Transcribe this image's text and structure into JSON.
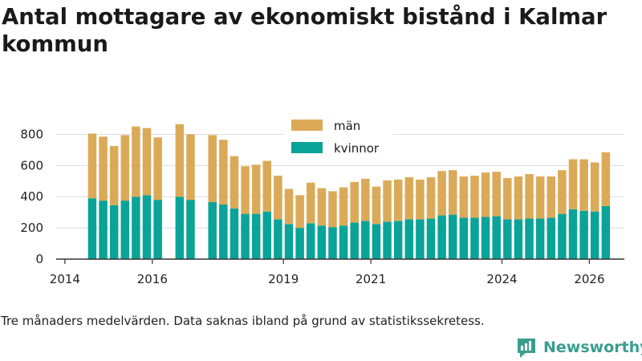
{
  "header": {
    "title": "Antal mottagare av ekonomiskt bistånd i Kalmar kommun"
  },
  "footer": {
    "note": "Tre månaders medelvärden. Data saknas ibland på grund av statistikssekretess.",
    "brand": "Newsworthy"
  },
  "colors": {
    "man": "#dbaa58",
    "kvinnor": "#0aa398",
    "brand": "#3a9e8f",
    "axis": "#333333",
    "grid": "#dddddd"
  },
  "chart_data": {
    "type": "bar",
    "stacked": true,
    "title": "Antal mottagare av ekonomiskt bistånd i Kalmar kommun",
    "xlabel": "",
    "ylabel": "",
    "ylim": [
      0,
      900
    ],
    "yticks": [
      0,
      200,
      400,
      600,
      800
    ],
    "xlim": [
      2013.8,
      2026.8
    ],
    "xticks": [
      2014,
      2016,
      2019,
      2021,
      2024,
      2026
    ],
    "grid": true,
    "legend_position": "top-center",
    "x": [
      2014.625,
      2014.875,
      2015.125,
      2015.375,
      2015.625,
      2015.875,
      2016.125,
      2016.625,
      2016.875,
      2017.375,
      2017.625,
      2017.875,
      2018.125,
      2018.375,
      2018.625,
      2018.875,
      2019.125,
      2019.375,
      2019.625,
      2019.875,
      2020.125,
      2020.375,
      2020.625,
      2020.875,
      2021.125,
      2021.375,
      2021.625,
      2021.875,
      2022.125,
      2022.375,
      2022.625,
      2022.875,
      2023.125,
      2023.375,
      2023.625,
      2023.875,
      2024.125,
      2024.375,
      2024.625,
      2024.875,
      2025.125,
      2025.375,
      2025.625,
      2025.875,
      2026.125,
      2026.375
    ],
    "series": [
      {
        "name": "kvinnor",
        "values": [
          390,
          375,
          345,
          375,
          400,
          410,
          380,
          400,
          380,
          365,
          350,
          325,
          290,
          290,
          305,
          255,
          225,
          200,
          230,
          215,
          205,
          215,
          235,
          245,
          225,
          240,
          245,
          255,
          255,
          260,
          280,
          285,
          265,
          265,
          270,
          275,
          255,
          255,
          260,
          260,
          265,
          290,
          320,
          310,
          305,
          340
        ]
      },
      {
        "name": "män",
        "values": [
          415,
          410,
          380,
          420,
          450,
          430,
          400,
          465,
          420,
          430,
          415,
          335,
          305,
          315,
          325,
          280,
          225,
          210,
          260,
          240,
          230,
          245,
          260,
          270,
          240,
          265,
          265,
          270,
          255,
          265,
          285,
          285,
          265,
          270,
          285,
          285,
          265,
          275,
          285,
          270,
          265,
          280,
          320,
          330,
          315,
          345
        ]
      }
    ]
  }
}
